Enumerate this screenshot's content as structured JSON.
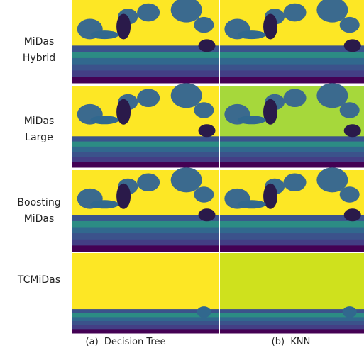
{
  "rows": [
    {
      "label": [
        "MiDas",
        "Hybrid"
      ]
    },
    {
      "label": [
        "MiDas",
        "Large"
      ]
    },
    {
      "label": [
        "Boosting",
        "MiDas"
      ]
    },
    {
      "label": [
        "TCMiDas"
      ]
    }
  ],
  "columns": [
    "(a)  Decision Tree",
    "(b)  KNN"
  ]
}
